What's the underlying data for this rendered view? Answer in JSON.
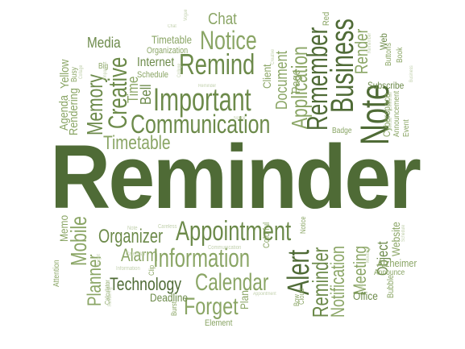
{
  "palette": {
    "dark": "#4f6b36",
    "mid": "#6c8a4a",
    "light": "#8aa565",
    "pale": "#a7bd8a",
    "faint": "#c2d1ae"
  },
  "words": [
    {
      "id": "reminder-main",
      "text": "Reminder",
      "tone": "dark"
    },
    {
      "id": "chat",
      "text": "Chat",
      "tone": "light"
    },
    {
      "id": "notice",
      "text": "Notice",
      "tone": "light"
    },
    {
      "id": "remind",
      "text": "Remind",
      "tone": "mid"
    },
    {
      "id": "application",
      "text": "Application",
      "tone": "light"
    },
    {
      "id": "remember",
      "text": "Remember",
      "tone": "dark"
    },
    {
      "id": "business",
      "text": "Business",
      "tone": "dark"
    },
    {
      "id": "note",
      "text": "Note",
      "tone": "dark"
    },
    {
      "id": "important",
      "text": "Important",
      "tone": "mid"
    },
    {
      "id": "communication",
      "text": "Communication",
      "tone": "mid"
    },
    {
      "id": "timetable-top",
      "text": "Timetable",
      "tone": "light"
    },
    {
      "id": "timetable-mid",
      "text": "Timetable",
      "tone": "light"
    },
    {
      "id": "creative",
      "text": "Creative",
      "tone": "mid"
    },
    {
      "id": "memory",
      "text": "Memory",
      "tone": "mid"
    },
    {
      "id": "media",
      "text": "Media",
      "tone": "mid"
    },
    {
      "id": "organization",
      "text": "Organization",
      "tone": "light"
    },
    {
      "id": "internet",
      "text": "Internet",
      "tone": "mid"
    },
    {
      "id": "schedule",
      "text": "Schedule",
      "tone": "light"
    },
    {
      "id": "time",
      "text": "Time",
      "tone": "light"
    },
    {
      "id": "bell",
      "text": "Bell",
      "tone": "mid"
    },
    {
      "id": "document",
      "text": "Document",
      "tone": "light"
    },
    {
      "id": "client",
      "text": "Client",
      "tone": "light"
    },
    {
      "id": "page",
      "text": "Page",
      "tone": "light"
    },
    {
      "id": "big",
      "text": "Big",
      "tone": "light"
    },
    {
      "id": "red",
      "text": "Red",
      "tone": "light"
    },
    {
      "id": "agenda",
      "text": "Agenda",
      "tone": "light"
    },
    {
      "id": "yellow",
      "text": "Yellow",
      "tone": "light"
    },
    {
      "id": "rendering",
      "text": "Rendering",
      "tone": "light"
    },
    {
      "id": "busy",
      "text": "Busy",
      "tone": "light"
    },
    {
      "id": "render",
      "text": "Render",
      "tone": "light"
    },
    {
      "id": "web",
      "text": "Web",
      "tone": "mid"
    },
    {
      "id": "buttons",
      "text": "Buttons",
      "tone": "light"
    },
    {
      "id": "book",
      "text": "Book",
      "tone": "light"
    },
    {
      "id": "subscribe",
      "text": "Subscribe",
      "tone": "mid"
    },
    {
      "id": "cyberspace",
      "text": "Cyberspace",
      "tone": "light"
    },
    {
      "id": "announcement",
      "text": "Announcement",
      "tone": "light"
    },
    {
      "id": "event",
      "text": "Event",
      "tone": "light"
    },
    {
      "id": "badge",
      "text": "Badge",
      "tone": "light"
    },
    {
      "id": "appointment",
      "text": "Appointment",
      "tone": "mid"
    },
    {
      "id": "organizer",
      "text": "Organizer",
      "tone": "mid"
    },
    {
      "id": "information",
      "text": "Information",
      "tone": "light"
    },
    {
      "id": "alarm",
      "text": "Alarm",
      "tone": "light"
    },
    {
      "id": "calendar",
      "text": "Calendar",
      "tone": "light"
    },
    {
      "id": "technology",
      "text": "Technology",
      "tone": "dark"
    },
    {
      "id": "forget",
      "text": "Forget",
      "tone": "light"
    },
    {
      "id": "deadline",
      "text": "Deadline",
      "tone": "mid"
    },
    {
      "id": "element",
      "text": "Element",
      "tone": "light"
    },
    {
      "id": "alert",
      "text": "Alert",
      "tone": "dark"
    },
    {
      "id": "reminder-vertical",
      "text": "Reminder",
      "tone": "mid"
    },
    {
      "id": "notification",
      "text": "Notification",
      "tone": "light"
    },
    {
      "id": "meeting",
      "text": "Meeting",
      "tone": "light"
    },
    {
      "id": "object",
      "text": "Object",
      "tone": "mid"
    },
    {
      "id": "website",
      "text": "Website",
      "tone": "light"
    },
    {
      "id": "alzheimer",
      "text": "Alzheimer",
      "tone": "light"
    },
    {
      "id": "announce",
      "text": "Announce",
      "tone": "light"
    },
    {
      "id": "office",
      "text": "Office",
      "tone": "mid"
    },
    {
      "id": "bubble",
      "text": "Bubble",
      "tone": "light"
    },
    {
      "id": "memo",
      "text": "Memo",
      "tone": "light"
    },
    {
      "id": "mobile",
      "text": "Mobile",
      "tone": "light"
    },
    {
      "id": "planner",
      "text": "Planner",
      "tone": "light"
    },
    {
      "id": "attention",
      "text": "Attention",
      "tone": "light"
    },
    {
      "id": "plan",
      "text": "Plan",
      "tone": "light"
    },
    {
      "id": "burst",
      "text": "Burst",
      "tone": "light"
    },
    {
      "id": "clip",
      "text": "Clip",
      "tone": "light"
    },
    {
      "id": "colorful",
      "text": "Colorful",
      "tone": "light"
    },
    {
      "id": "notice-small",
      "text": "Notice",
      "tone": "light"
    },
    {
      "id": "calculator",
      "text": "Calculator",
      "tone": "light"
    },
    {
      "id": "bow",
      "text": "Bow",
      "tone": "light"
    },
    {
      "id": "cloud",
      "text": "Cloud",
      "tone": "light"
    },
    {
      "id": "careless",
      "text": "Careless",
      "tone": "faint"
    },
    {
      "id": "note-small",
      "text": "Note",
      "tone": "faint"
    },
    {
      "id": "calendar-small",
      "text": "Calendar",
      "tone": "faint"
    },
    {
      "id": "information-small",
      "text": "Information",
      "tone": "faint"
    },
    {
      "id": "communication-small",
      "text": "Communication",
      "tone": "faint"
    },
    {
      "id": "appointment-small",
      "text": "Appointment",
      "tone": "faint"
    },
    {
      "id": "college",
      "text": "College",
      "tone": "faint"
    },
    {
      "id": "reminder-small",
      "text": "Reminder",
      "tone": "faint"
    },
    {
      "id": "celebrate",
      "text": "Celebrate",
      "tone": "faint"
    },
    {
      "id": "business-small",
      "text": "Business",
      "tone": "faint"
    },
    {
      "id": "important-small",
      "text": "Important",
      "tone": "faint"
    },
    {
      "id": "collage",
      "text": "Collage",
      "tone": "faint"
    },
    {
      "id": "meeting-small",
      "text": "Meeting",
      "tone": "faint"
    },
    {
      "id": "clipart",
      "text": "Clipart",
      "tone": "faint"
    },
    {
      "id": "media-small",
      "text": "Media",
      "tone": "faint"
    },
    {
      "id": "schedule-small",
      "text": "Schedule",
      "tone": "faint"
    },
    {
      "id": "forget-small",
      "text": "Forget",
      "tone": "faint"
    },
    {
      "id": "rendering-small",
      "text": "Rendering",
      "tone": "faint"
    },
    {
      "id": "remember-small",
      "text": "Remember",
      "tone": "faint"
    },
    {
      "id": "vogue",
      "text": "Vogue",
      "tone": "faint"
    },
    {
      "id": "notice-tiny",
      "text": "Notice",
      "tone": "faint"
    },
    {
      "id": "creative-small",
      "text": "Creative",
      "tone": "faint"
    },
    {
      "id": "chat-small",
      "text": "Chat",
      "tone": "faint"
    }
  ]
}
